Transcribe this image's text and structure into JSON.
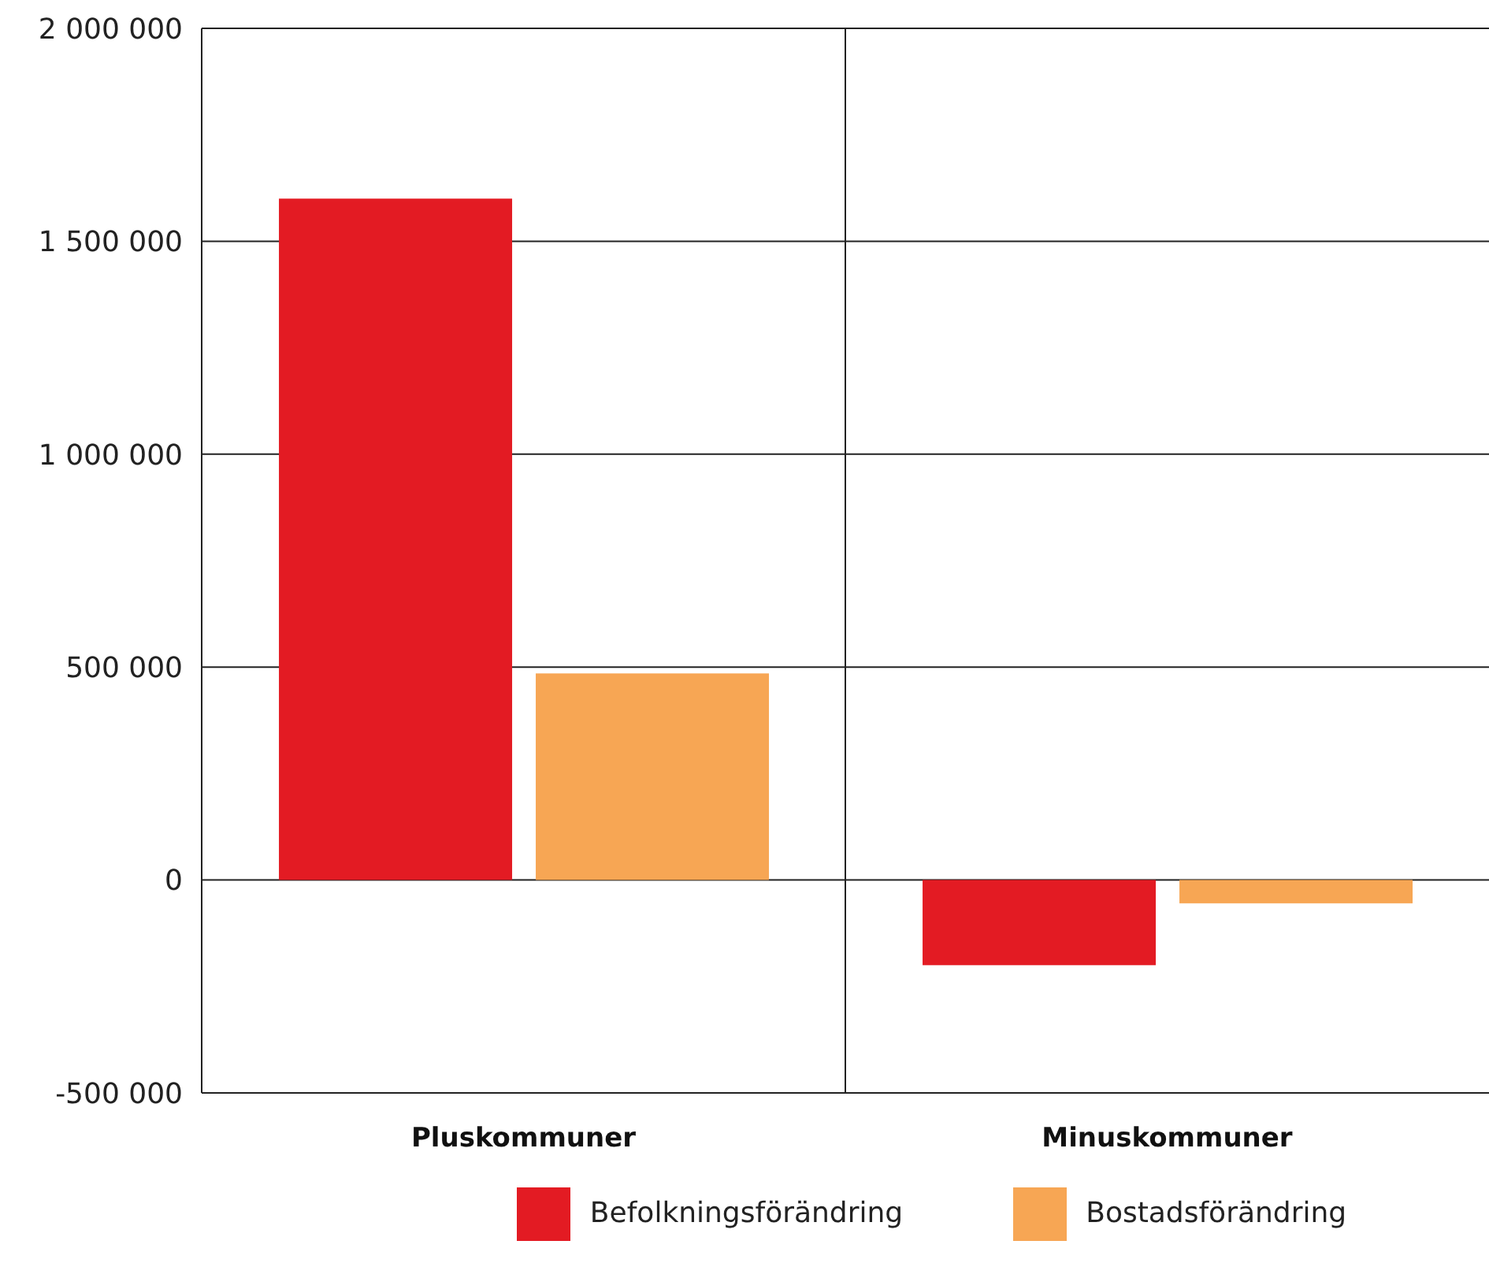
{
  "chart_data": {
    "type": "bar",
    "categories": [
      "Pluskommuner",
      "Minuskommuner"
    ],
    "series": [
      {
        "name": "Befolkningsförändring",
        "color": "#e31b23",
        "values": [
          1600000,
          -200000
        ]
      },
      {
        "name": "Bostadsförändring",
        "color": "#f7a654",
        "values": [
          485000,
          -55000
        ]
      }
    ],
    "ylim": [
      -500000,
      2000000
    ],
    "yticks": [
      {
        "value": -500000,
        "label": "-500 000"
      },
      0,
      {
        "value": 500000,
        "label": "500 000"
      },
      {
        "value": 1000000,
        "label": "1 000 000"
      },
      {
        "value": 1500000,
        "label": "1 500 000"
      },
      {
        "value": 2000000,
        "label": "2 000 000"
      }
    ],
    "grid": true,
    "legend": "bottom"
  }
}
